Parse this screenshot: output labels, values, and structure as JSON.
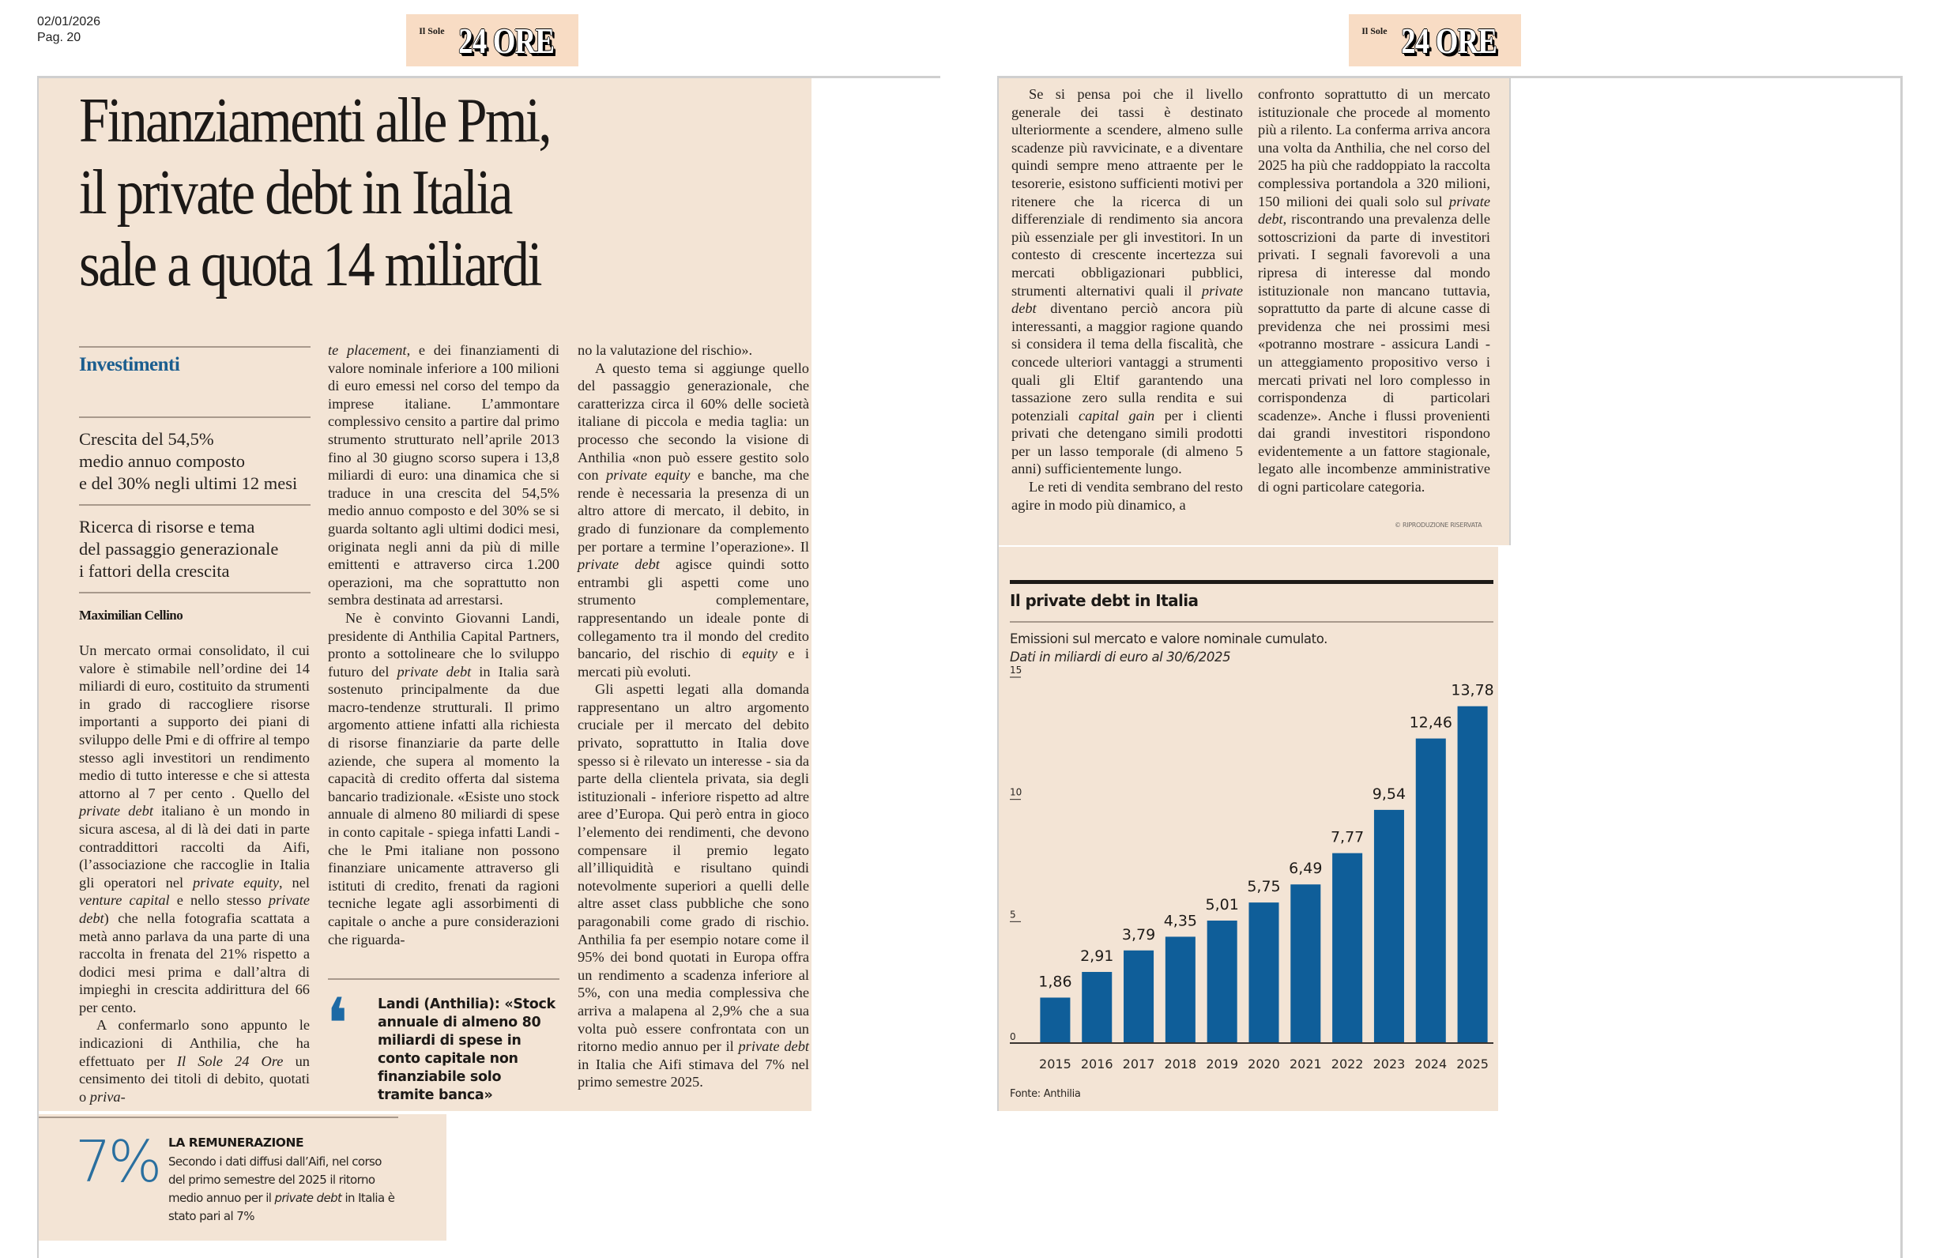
{
  "meta": {
    "date": "02/01/2026",
    "page": "Pag. 20"
  },
  "logo": {
    "small": "Il Sole",
    "big": "24 ORE"
  },
  "article": {
    "headline": [
      "Finanziamenti alle Pmi,",
      "il private debt in Italia",
      "sale a quota 14 miliardi"
    ],
    "section": "Investimenti",
    "subheads": [
      [
        "Crescita del 54,5%",
        "medio annuo composto",
        "e del 30% negli ultimi 12 mesi"
      ],
      [
        "Ricerca di risorse e tema",
        "del passaggio generazionale",
        "i fattori della crescita"
      ]
    ],
    "byline": "Maximilian Cellino",
    "col1": [
      "Un mercato ormai consolidato, il cui valore è stimabile nell’ordine dei 14 miliardi di euro, costituito da strumenti in grado di raccogliere risorse importanti a supporto dei piani di sviluppo delle Pmi e di offrire al tempo stesso agli investitori un rendimento medio di tutto interesse e che si attesta attorno al 7 per cento . Quello del ",
      "private debt",
      " italiano è un mondo in sicura ascesa, al di là dei dati in parte contraddittori raccolti da Aifi, (l’associazione che raccoglie in Italia gli operatori nel ",
      "private equity",
      ", nel ",
      "venture capital",
      " e nello stesso ",
      "private debt",
      ") che nella fotografia scattata a metà anno parlava da una parte di una raccolta in frenata del 21% rispetto a dodici mesi prima e dall’altra di impieghi in crescita addirittura del 66 per cento.",
      "A confermarlo sono appunto le indicazioni di Anthilia, che ha effettuato per ",
      "Il Sole 24 Ore",
      " un censimento dei titoli di debito, quotati o ",
      "priva-"
    ],
    "col2": [
      "te placement",
      ", e dei finanziamenti di valore nominale inferiore a 100 milioni di euro emessi nel corso del tempo da imprese italiane. L’ammontare complessivo censito a partire dal primo strumento strutturato nell’aprile 2013 fino al 30 giugno scorso supera i 13,8 miliardi di euro: una dinamica che si traduce in una crescita del 54,5% medio annuo composto e del 30% se si guarda soltanto agli ultimi dodici mesi, originata negli anni da più di mille emittenti e attraverso circa 1.200 operazioni, ma che soprattutto non sembra destinata ad arrestarsi.",
      "Ne è convinto Giovanni Landi, presidente di Anthilia Capital Partners, pronto a sottolineare che lo sviluppo futuro del ",
      "private debt",
      " in Italia sarà sostenuto principalmente da due macro-tendenze strutturali. Il primo argomento attiene infatti alla richiesta di risorse finanziarie da parte delle aziende, che supera al momento la capacità di credito offerta dal sistema bancario tradizionale. «Esiste uno stock annuale di almeno 80 miliardi di spese in conto capitale - spiega infatti Landi - che le Pmi italiane non possono finanziare unicamente attraverso gli istituti di credito, frenati da ragioni tecniche legate agli assorbimenti di capitale o anche a pure considerazioni che riguarda-"
    ],
    "quote": "Landi (Anthilia): «Stock annuale di almeno 80 miliardi di spese in conto capitale non finanziabile solo tramite banca»",
    "col3": [
      "no la valutazione del rischio».",
      "A questo tema si aggiunge quello del passaggio generazionale, che caratterizza circa il 60% delle società italiane di piccola e media taglia: un processo che secondo la visione di Anthilia «non può essere gestito solo con ",
      "private equity",
      " e banche, ma che rende è necessaria la presenza di un altro attore di mercato, il debito, in grado di funzionare da complemento per portare a termine l’operazione». Il ",
      "private debt",
      " agisce quindi sotto entrambi gli aspetti come uno strumento complementare, rappresentando un ideale ponte di collegamento tra il mondo del credito bancario, del rischio di ",
      "equity",
      " e i mercati più evoluti.",
      "Gli aspetti legati alla domanda rappresentano un altro argomento cruciale per il mercato del debito privato, soprattutto in Italia dove spesso si è rilevato un interesse - sia da parte della clientela privata, sia degli istituzionali - inferiore rispetto ad altre aree d’Europa. Qui però entra in gioco l’elemento dei rendimenti, che devono compensare il premio legato all’illiquidità e risultano quindi notevolmente superiori a quelli delle altre asset class pubbliche che sono paragonabili come grado di rischio. Anthilia fa per esempio notare come il 95% dei bond quotati in Europa offra un rendimento a scadenza inferiore al 5%, con una media complessiva che arriva a malapena al 2,9% che a sua volta può essere confrontata con un ritorno medio annuo per il ",
      "private debt",
      " in Italia che Aifi stimava del 7% nel primo semestre 2025."
    ],
    "col4": [
      "Se si pensa poi che il livello generale dei tassi è destinato ulteriormente a scendere, almeno sulle scadenze più ravvicinate, e a diventare quindi sempre meno attraente per le tesorerie, esistono sufficienti motivi per ritenere che la ricerca di un differenziale di rendimento sia ancora più essenziale per gli investitori. In un contesto di crescente incertezza sui mercati obbligazionari pubblici, strumenti alternativi quali il ",
      "private debt",
      " diventano perciò ancora più interessanti, a maggior ragione quando si considera il tema della fiscalità, che concede ulteriori vantaggi a strumenti quali gli Eltif garantendo una tassazione zero sulla rendita e sui potenziali ",
      "capital gain",
      " per i clienti privati che detengano simili prodotti per un lasso temporale (di almeno 5 anni) sufficientemente lungo.",
      "Le reti di vendita sembrano del resto agire in modo più dinamico, a"
    ],
    "col5": [
      "confronto soprattutto di un mercato istituzionale che procede al momento più a rilento. La conferma arriva ancora una volta da Anthilia, che nel corso del 2025 ha più che raddoppiato la raccolta complessiva portandola a 320 milioni, 150 milioni dei quali solo sul ",
      "private debt",
      ", riscontrando una prevalenza delle sottoscrizioni da parte di investitori privati. I segnali favorevoli a una ripresa di interesse dal mondo istituzionale non mancano tuttavia, soprattutto da parte di alcune casse di previdenza che nei prossimi mesi «potranno mostrare - assicura Landi - un atteggiamento propositivo verso i mercati privati nel loro complesso in corrispondenza di particolari scadenze». Anche i flussi provenienti dai grandi investitori rispondono evidentemente a un fattore stagionale, legato alle incombenze amministrative di ogni particolare categoria."
    ],
    "copyright": "© RIPRODUZIONE RISERVATA"
  },
  "callout": {
    "value": "7%",
    "title": "LA REMUNERAZIONE",
    "text_before": "Secondo i dati diffusi dall’Aifi, nel corso del primo semestre del 2025 il ritorno medio annuo per il ",
    "text_italic": "private debt",
    "text_after": " in Italia è stato pari al 7%"
  },
  "chart_data": {
    "type": "bar",
    "title": "Il private debt in Italia",
    "subtitle": "Emissioni sul mercato e valore nominale cumulato.",
    "note": "Dati in miliardi di euro al 30/6/2025",
    "categories": [
      "2015",
      "2016",
      "2017",
      "2018",
      "2019",
      "2020",
      "2021",
      "2022",
      "2023",
      "2024",
      "2025"
    ],
    "values": [
      1.86,
      2.91,
      3.79,
      4.35,
      5.01,
      5.75,
      6.49,
      7.77,
      9.54,
      12.46,
      13.78
    ],
    "value_labels": [
      "1,86",
      "2,91",
      "3,79",
      "4,35",
      "5,01",
      "5,75",
      "6,49",
      "7,77",
      "9,54",
      "12,46",
      "13,78"
    ],
    "yticks": [
      0,
      5,
      10,
      15
    ],
    "ylim": [
      0,
      15
    ],
    "xlabel": "",
    "ylabel": "",
    "grid": false,
    "source": "Fonte: Anthilia",
    "bar_color": "#0f5e99"
  }
}
